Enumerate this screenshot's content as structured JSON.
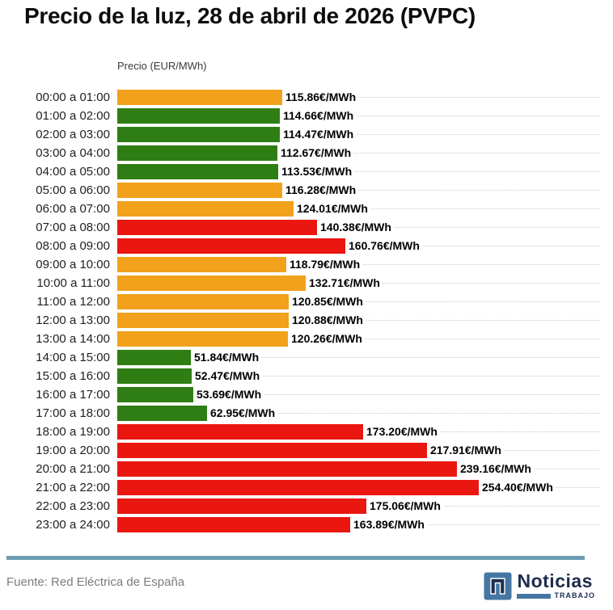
{
  "title": "Precio de la luz, 28 de abril de 2026 (PVPC)",
  "axis_label": "Precio (EUR/MWh)",
  "footer": {
    "source": "Fuente: Red Eléctrica de España",
    "logo_name": "Noticias",
    "logo_subtext": "TRABAJO"
  },
  "colors": {
    "cheap": "#2e7e14",
    "medium": "#f1a11b",
    "expensive": "#ea1610",
    "separator": "#6d9cb3",
    "grid": "#c9c9c9",
    "logo_blue": "#4577a3",
    "logo_navy": "#1d2d4f"
  },
  "chart_data": {
    "type": "bar",
    "orientation": "horizontal",
    "title": "Precio de la luz, 28 de abril de 2026 (PVPC)",
    "xlabel": "Precio (EUR/MWh)",
    "value_suffix": "€/MWh",
    "xlim": [
      0,
      260
    ],
    "grid": "dotted horizontal per row",
    "legend": "none",
    "categories": [
      "00:00 a 01:00",
      "01:00 a 02:00",
      "02:00 a 03:00",
      "03:00 a 04:00",
      "04:00 a 05:00",
      "05:00 a 06:00",
      "06:00 a 07:00",
      "07:00 a 08:00",
      "08:00 a 09:00",
      "09:00 a 10:00",
      "10:00 a 11:00",
      "11:00 a 12:00",
      "12:00 a 13:00",
      "13:00 a 14:00",
      "14:00 a 15:00",
      "15:00 a 16:00",
      "16:00 a 17:00",
      "17:00 a 18:00",
      "18:00 a 19:00",
      "19:00 a 20:00",
      "20:00 a 21:00",
      "21:00 a 22:00",
      "22:00 a 23:00",
      "23:00 a 24:00"
    ],
    "values": [
      115.86,
      114.66,
      114.47,
      112.67,
      113.53,
      116.28,
      124.01,
      140.38,
      160.76,
      118.79,
      132.71,
      120.85,
      120.88,
      120.26,
      51.84,
      52.47,
      53.69,
      62.95,
      173.2,
      217.91,
      239.16,
      254.4,
      175.06,
      163.89
    ],
    "levels": [
      "medium",
      "cheap",
      "cheap",
      "cheap",
      "cheap",
      "medium",
      "medium",
      "expensive",
      "expensive",
      "medium",
      "medium",
      "medium",
      "medium",
      "medium",
      "cheap",
      "cheap",
      "cheap",
      "cheap",
      "expensive",
      "expensive",
      "expensive",
      "expensive",
      "expensive",
      "expensive"
    ]
  }
}
